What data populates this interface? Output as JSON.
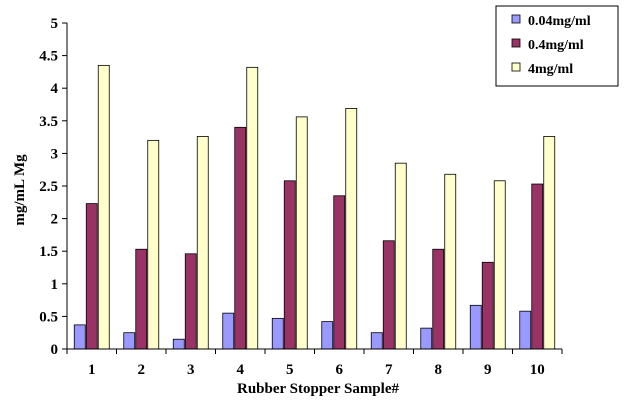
{
  "chart_data": {
    "type": "bar",
    "title": "",
    "xlabel": "Rubber Stopper Sample#",
    "ylabel": "mg/mL Mg",
    "ylim": [
      0,
      5
    ],
    "yticks": [
      "0",
      "0.5",
      "1",
      "1.5",
      "2",
      "2.5",
      "3",
      "3.5",
      "4",
      "4.5",
      "5"
    ],
    "categories": [
      "1",
      "2",
      "3",
      "4",
      "5",
      "6",
      "7",
      "8",
      "9",
      "10"
    ],
    "series": [
      {
        "name": "0.04mg/ml",
        "color": "#9999ff",
        "values": [
          0.37,
          0.25,
          0.15,
          0.55,
          0.47,
          0.42,
          0.25,
          0.32,
          0.67,
          0.58
        ]
      },
      {
        "name": "0.4mg/ml",
        "color": "#993366",
        "values": [
          2.23,
          1.53,
          1.46,
          3.4,
          2.58,
          2.35,
          1.66,
          1.53,
          1.33,
          2.53
        ]
      },
      {
        "name": "4mg/ml",
        "color": "#ffffcc",
        "values": [
          4.35,
          3.2,
          3.26,
          4.32,
          3.56,
          3.69,
          2.85,
          2.68,
          2.58,
          3.26
        ]
      }
    ],
    "grid": false,
    "legend_position": "top-right"
  }
}
